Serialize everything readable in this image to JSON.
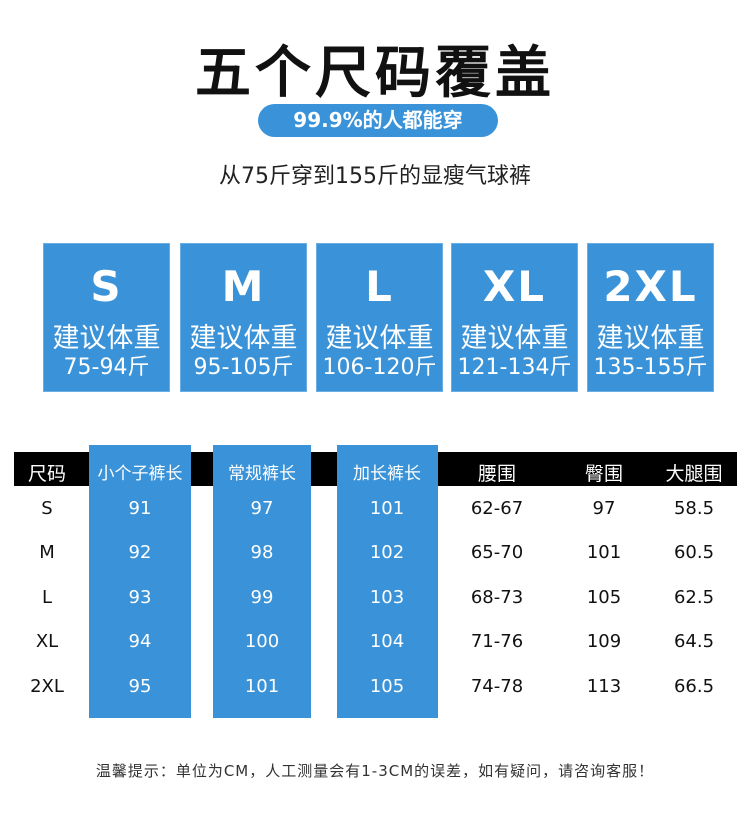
{
  "title": "五个尺码覆盖",
  "badge": "99.9%的人都能穿",
  "subtitle": "从75斤穿到155斤的显瘦气球裤",
  "accent_color": "#3a93d8",
  "size_cards": [
    {
      "size": "S",
      "label": "建议体重",
      "range": "75-94斤"
    },
    {
      "size": "M",
      "label": "建议体重",
      "range": "95-105斤"
    },
    {
      "size": "L",
      "label": "建议体重",
      "range": "106-120斤"
    },
    {
      "size": "XL",
      "label": "建议体重",
      "range": "121-134斤"
    },
    {
      "size": "2XL",
      "label": "建议体重",
      "range": "135-155斤"
    }
  ],
  "table": {
    "headers": [
      "尺码",
      "小个子裤长",
      "常规裤长",
      "加长裤长",
      "腰围",
      "臀围",
      "大腿围"
    ],
    "rows": [
      [
        "S",
        "91",
        "97",
        "101",
        "62-67",
        "97",
        "58.5"
      ],
      [
        "M",
        "92",
        "98",
        "102",
        "65-70",
        "101",
        "60.5"
      ],
      [
        "L",
        "93",
        "99",
        "103",
        "68-73",
        "105",
        "62.5"
      ],
      [
        "XL",
        "94",
        "100",
        "104",
        "71-76",
        "109",
        "64.5"
      ],
      [
        "2XL",
        "95",
        "101",
        "105",
        "74-78",
        "113",
        "66.5"
      ]
    ]
  },
  "footnote": "温馨提示：单位为CM，人工测量会有1-3CM的误差，如有疑问，请咨询客服！"
}
